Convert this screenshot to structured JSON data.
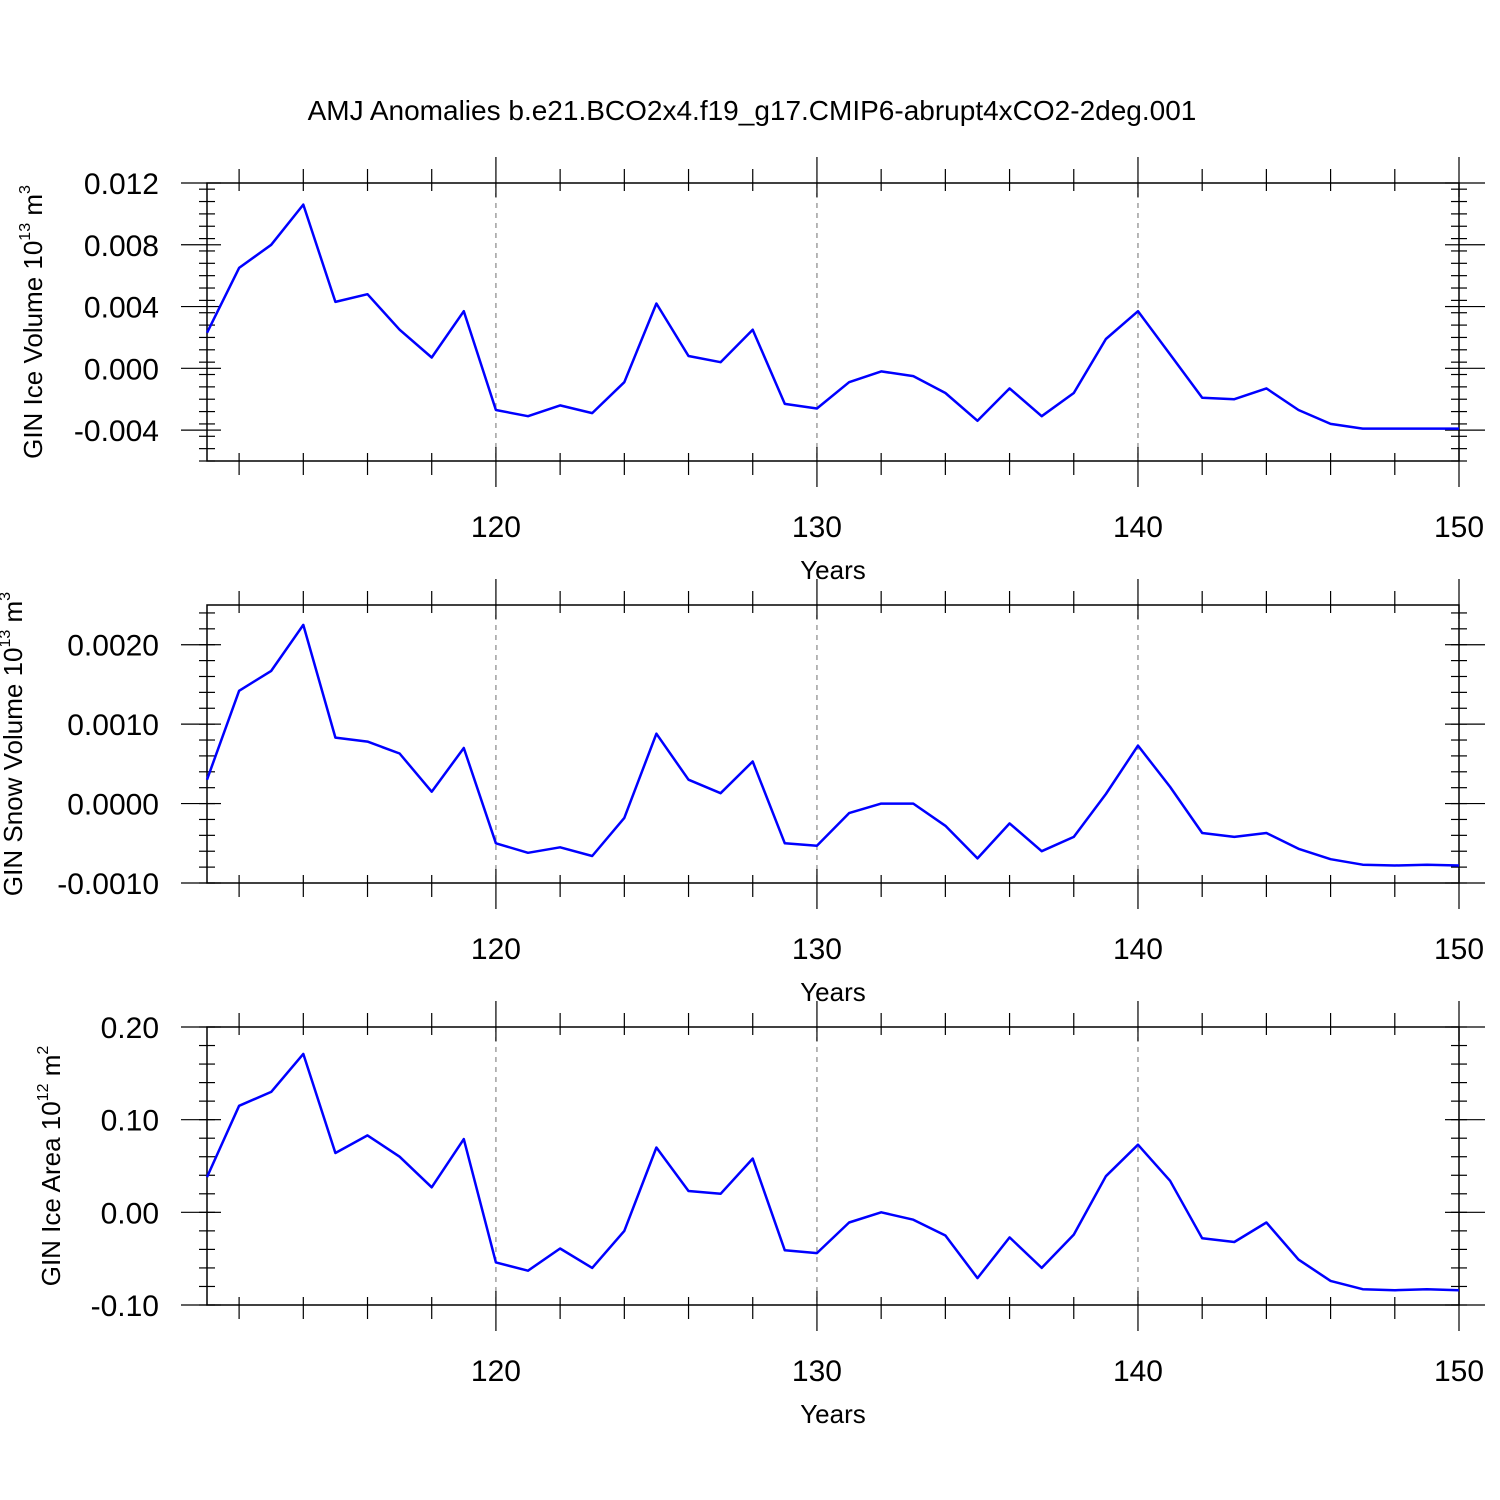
{
  "title": "AMJ Anomalies b.e21.BCO2x4.f19_g17.CMIP6-abrupt4xCO2-2deg.001",
  "colors": {
    "series": "#0000ff",
    "grid": "#888888",
    "axis": "#000000"
  },
  "chart_data": [
    {
      "type": "line",
      "xlabel": "Years",
      "ylabel": {
        "text": "GIN Ice Volume 10",
        "exp": "13",
        "unit": " m",
        "unit_exp": "3"
      },
      "xlim": [
        111,
        150
      ],
      "ylim": [
        -0.006,
        0.012
      ],
      "xticks": [
        120,
        130,
        140,
        150
      ],
      "xtick_labels": [
        "120",
        "130",
        "140",
        "150"
      ],
      "yticks": [
        -0.004,
        0.0,
        0.004,
        0.008,
        0.012
      ],
      "ytick_labels": [
        "-0.004",
        "0.000",
        "0.004",
        "0.008",
        "0.012"
      ],
      "grid": "vertical dashed at major x ticks",
      "x": [
        111,
        112,
        113,
        114,
        115,
        116,
        117,
        118,
        119,
        120,
        121,
        122,
        123,
        124,
        125,
        126,
        127,
        128,
        129,
        130,
        131,
        132,
        133,
        134,
        135,
        136,
        137,
        138,
        139,
        140,
        141,
        142,
        143,
        144,
        145,
        146,
        147,
        148,
        149,
        150
      ],
      "series": [
        {
          "values": [
            0.0023,
            0.0065,
            0.008,
            0.0106,
            0.0043,
            0.0048,
            0.0025,
            0.0007,
            0.0037,
            -0.0027,
            -0.0031,
            -0.0024,
            -0.0029,
            -0.0009,
            0.0042,
            0.0008,
            0.0004,
            0.0025,
            -0.0023,
            -0.0026,
            -0.0009,
            -0.0002,
            -0.0005,
            -0.0016,
            -0.0034,
            -0.0013,
            -0.0031,
            -0.0016,
            0.0019,
            0.0037,
            0.0009,
            -0.0019,
            -0.002,
            -0.0013,
            -0.0027,
            -0.0036,
            -0.0039,
            -0.0039,
            -0.0039,
            -0.0039
          ]
        }
      ]
    },
    {
      "type": "line",
      "xlabel": "Years",
      "ylabel": {
        "text": "GIN Snow Volume 10",
        "exp": "13",
        "unit": " m",
        "unit_exp": "3"
      },
      "xlim": [
        111,
        150
      ],
      "ylim": [
        -0.001,
        0.0025
      ],
      "xticks": [
        120,
        130,
        140,
        150
      ],
      "xtick_labels": [
        "120",
        "130",
        "140",
        "150"
      ],
      "yticks": [
        -0.001,
        0.0,
        0.001,
        0.002
      ],
      "ytick_labels": [
        "-0.0010",
        "0.0000",
        "0.0010",
        "0.0020"
      ],
      "grid": "vertical dashed at major x ticks",
      "x": [
        111,
        112,
        113,
        114,
        115,
        116,
        117,
        118,
        119,
        120,
        121,
        122,
        123,
        124,
        125,
        126,
        127,
        128,
        129,
        130,
        131,
        132,
        133,
        134,
        135,
        136,
        137,
        138,
        139,
        140,
        141,
        142,
        143,
        144,
        145,
        146,
        147,
        148,
        149,
        150
      ],
      "series": [
        {
          "values": [
            0.0003,
            0.00142,
            0.00167,
            0.00225,
            0.00083,
            0.00078,
            0.00063,
            0.00015,
            0.0007,
            -0.0005,
            -0.00062,
            -0.00055,
            -0.00066,
            -0.00018,
            0.00088,
            0.0003,
            0.00013,
            0.00053,
            -0.0005,
            -0.00053,
            -0.00012,
            0.0,
            0.0,
            -0.00028,
            -0.00069,
            -0.00025,
            -0.0006,
            -0.00042,
            0.00012,
            0.00073,
            0.00021,
            -0.00037,
            -0.00042,
            -0.00037,
            -0.00057,
            -0.0007,
            -0.00077,
            -0.00078,
            -0.00077,
            -0.00078
          ]
        }
      ]
    },
    {
      "type": "line",
      "xlabel": "Years",
      "ylabel": {
        "text": "GIN Ice Area 10",
        "exp": "12",
        "unit": " m",
        "unit_exp": "2"
      },
      "xlim": [
        111,
        150
      ],
      "ylim": [
        -0.1,
        0.2
      ],
      "xticks": [
        120,
        130,
        140,
        150
      ],
      "xtick_labels": [
        "120",
        "130",
        "140",
        "150"
      ],
      "yticks": [
        -0.1,
        0.0,
        0.1,
        0.2
      ],
      "ytick_labels": [
        "-0.10",
        "0.00",
        "0.10",
        "0.20"
      ],
      "grid": "vertical dashed at major x ticks",
      "x": [
        111,
        112,
        113,
        114,
        115,
        116,
        117,
        118,
        119,
        120,
        121,
        122,
        123,
        124,
        125,
        126,
        127,
        128,
        129,
        130,
        131,
        132,
        133,
        134,
        135,
        136,
        137,
        138,
        139,
        140,
        141,
        142,
        143,
        144,
        145,
        146,
        147,
        148,
        149,
        150
      ],
      "series": [
        {
          "values": [
            0.038,
            0.115,
            0.13,
            0.171,
            0.064,
            0.083,
            0.06,
            0.027,
            0.079,
            -0.054,
            -0.063,
            -0.039,
            -0.06,
            -0.02,
            0.07,
            0.023,
            0.02,
            0.058,
            -0.041,
            -0.044,
            -0.011,
            0.0,
            -0.008,
            -0.025,
            -0.071,
            -0.027,
            -0.06,
            -0.024,
            0.039,
            0.073,
            0.034,
            -0.028,
            -0.032,
            -0.011,
            -0.051,
            -0.074,
            -0.083,
            -0.084,
            -0.083,
            -0.084
          ]
        }
      ]
    }
  ]
}
